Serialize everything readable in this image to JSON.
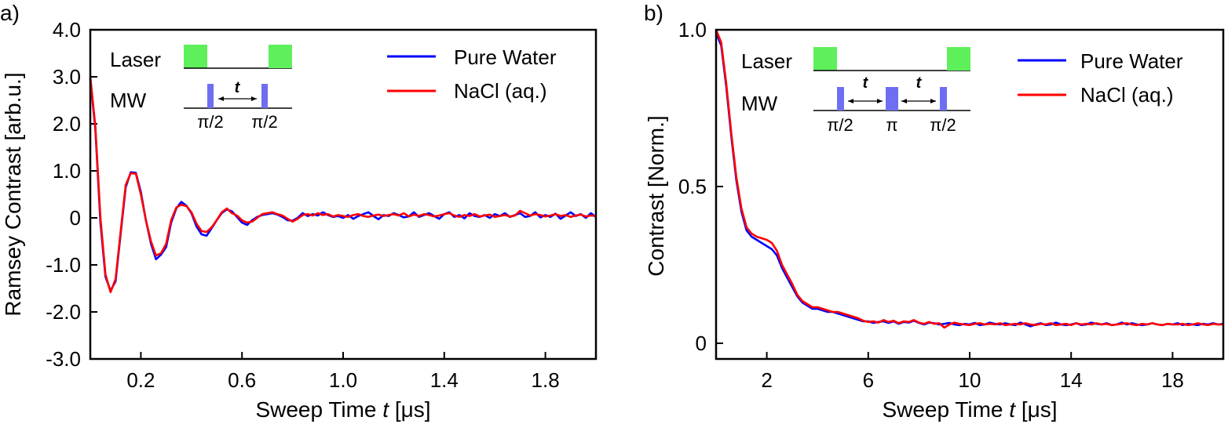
{
  "chart_data": [
    {
      "type": "line",
      "panel_label": "a)",
      "title": "",
      "xlabel_prefix": "Sweep Time ",
      "xlabel_var": "t",
      "xlabel_unit": " [μs]",
      "ylabel": "Ramsey Contrast [arb.u.]",
      "xlim": [
        0,
        2.0
      ],
      "ylim": [
        -3.0,
        4.0
      ],
      "xticks": [
        0.2,
        0.6,
        1.0,
        1.4,
        1.8
      ],
      "xtick_labels": [
        "0.2",
        "0.6",
        "1.0",
        "1.4",
        "1.8"
      ],
      "yticks": [
        4.0,
        3.0,
        2.0,
        1.0,
        0,
        -1.0,
        -2.0,
        -3.0
      ],
      "ytick_labels": [
        "4.0",
        "3.0",
        "2.0",
        "1.0",
        "0",
        "-1.0",
        "-2.0",
        "-3.0"
      ],
      "series": [
        {
          "name": "Pure Water",
          "color": "#0000ff",
          "x": [
            0.0,
            0.02,
            0.04,
            0.06,
            0.08,
            0.1,
            0.12,
            0.14,
            0.16,
            0.18,
            0.2,
            0.22,
            0.24,
            0.26,
            0.28,
            0.3,
            0.32,
            0.34,
            0.36,
            0.38,
            0.4,
            0.42,
            0.44,
            0.46,
            0.48,
            0.5,
            0.52,
            0.54,
            0.56,
            0.58,
            0.6,
            0.62,
            0.64,
            0.66,
            0.68,
            0.7,
            0.72,
            0.74,
            0.76,
            0.78,
            0.8,
            0.82,
            0.84,
            0.86,
            0.88,
            0.9,
            0.92,
            0.94,
            0.96,
            0.98,
            1.0,
            1.02,
            1.04,
            1.06,
            1.08,
            1.1,
            1.12,
            1.14,
            1.16,
            1.18,
            1.2,
            1.22,
            1.24,
            1.26,
            1.28,
            1.3,
            1.32,
            1.34,
            1.36,
            1.38,
            1.4,
            1.42,
            1.44,
            1.46,
            1.48,
            1.5,
            1.52,
            1.54,
            1.56,
            1.58,
            1.6,
            1.62,
            1.64,
            1.66,
            1.68,
            1.7,
            1.72,
            1.74,
            1.76,
            1.78,
            1.8,
            1.82,
            1.84,
            1.86,
            1.88,
            1.9,
            1.92,
            1.94,
            1.96,
            1.98,
            2.0
          ],
          "values": [
            2.95,
            1.9,
            -0.1,
            -1.25,
            -1.55,
            -1.35,
            -0.35,
            0.65,
            0.97,
            0.96,
            0.55,
            -0.05,
            -0.55,
            -0.88,
            -0.78,
            -0.62,
            -0.1,
            0.2,
            0.34,
            0.26,
            0.1,
            -0.18,
            -0.35,
            -0.38,
            -0.22,
            -0.05,
            0.1,
            0.18,
            0.14,
            0.02,
            -0.1,
            -0.15,
            -0.05,
            0.02,
            0.06,
            0.08,
            0.1,
            0.07,
            0.02,
            -0.05,
            -0.06,
            0.0,
            0.1,
            0.04,
            0.08,
            0.05,
            0.12,
            0.06,
            0.02,
            0.04,
            0.0,
            0.06,
            -0.02,
            0.04,
            0.08,
            0.12,
            0.04,
            -0.03,
            0.06,
            0.04,
            0.1,
            0.06,
            0.01,
            0.03,
            0.12,
            0.02,
            0.06,
            0.1,
            0.04,
            -0.02,
            0.08,
            0.12,
            0.02,
            0.06,
            -0.01,
            0.1,
            0.04,
            0.02,
            0.06,
            0.0,
            0.08,
            0.04,
            0.1,
            0.02,
            0.06,
            0.1,
            0.02,
            0.04,
            0.12,
            0.01,
            0.06,
            0.02,
            0.09,
            -0.02,
            0.05,
            0.12,
            0.04,
            0.08,
            0.0,
            0.1,
            0.02
          ]
        },
        {
          "name": "NaCl (aq.)",
          "color": "#ff0000",
          "x": [
            0.0,
            0.02,
            0.04,
            0.06,
            0.08,
            0.1,
            0.12,
            0.14,
            0.16,
            0.18,
            0.2,
            0.22,
            0.24,
            0.26,
            0.28,
            0.3,
            0.32,
            0.34,
            0.36,
            0.38,
            0.4,
            0.42,
            0.44,
            0.46,
            0.48,
            0.5,
            0.52,
            0.54,
            0.56,
            0.58,
            0.6,
            0.62,
            0.64,
            0.66,
            0.68,
            0.7,
            0.72,
            0.74,
            0.76,
            0.78,
            0.8,
            0.82,
            0.84,
            0.86,
            0.88,
            0.9,
            0.92,
            0.94,
            0.96,
            0.98,
            1.0,
            1.02,
            1.04,
            1.06,
            1.08,
            1.1,
            1.12,
            1.14,
            1.16,
            1.18,
            1.2,
            1.22,
            1.24,
            1.26,
            1.28,
            1.3,
            1.32,
            1.34,
            1.36,
            1.38,
            1.4,
            1.42,
            1.44,
            1.46,
            1.48,
            1.5,
            1.52,
            1.54,
            1.56,
            1.58,
            1.6,
            1.62,
            1.64,
            1.66,
            1.68,
            1.7,
            1.72,
            1.74,
            1.76,
            1.78,
            1.8,
            1.82,
            1.84,
            1.86,
            1.88,
            1.9,
            1.92,
            1.94,
            1.96,
            1.98,
            2.0
          ],
          "values": [
            3.0,
            1.95,
            0.0,
            -1.2,
            -1.58,
            -1.3,
            -0.3,
            0.7,
            0.95,
            0.94,
            0.5,
            -0.05,
            -0.5,
            -0.8,
            -0.75,
            -0.55,
            -0.05,
            0.22,
            0.28,
            0.25,
            0.12,
            -0.12,
            -0.28,
            -0.3,
            -0.2,
            -0.05,
            0.12,
            0.2,
            0.1,
            0.05,
            -0.05,
            -0.1,
            -0.08,
            0.0,
            0.08,
            0.1,
            0.12,
            0.08,
            0.05,
            -0.02,
            -0.08,
            -0.02,
            0.06,
            0.08,
            0.05,
            0.1,
            0.06,
            0.08,
            0.03,
            0.06,
            0.04,
            0.02,
            0.06,
            0.08,
            0.04,
            0.02,
            0.05,
            0.07,
            0.04,
            0.06,
            0.08,
            0.05,
            0.1,
            0.03,
            0.07,
            0.04,
            0.08,
            0.06,
            0.03,
            0.05,
            0.08,
            0.1,
            0.05,
            0.02,
            0.06,
            0.04,
            0.08,
            0.03,
            0.05,
            0.07,
            0.02,
            0.04,
            0.06,
            0.03,
            0.05,
            0.15,
            0.1,
            0.05,
            0.08,
            0.06,
            0.03,
            0.05,
            0.08,
            0.04,
            0.06,
            0.02,
            0.05,
            0.07,
            0.03,
            0.05,
            0.04
          ]
        }
      ],
      "inset": {
        "laser_label": "Laser",
        "mw_label": "MW",
        "time_label": "t",
        "pulse_labels": [
          "π/2",
          "π/2"
        ],
        "laser_color": "#5ef05a",
        "pulse_color": "#6e6ef2"
      }
    },
    {
      "type": "line",
      "panel_label": "b)",
      "title": "",
      "xlabel_prefix": "Sweep Time ",
      "xlabel_var": "t",
      "xlabel_unit": " [μs]",
      "ylabel": "Contrast [Norm.]",
      "xlim": [
        0,
        20
      ],
      "ylim": [
        -0.05,
        1.0
      ],
      "xticks": [
        2,
        6,
        10,
        14,
        18
      ],
      "xtick_labels": [
        "2",
        "6",
        "10",
        "14",
        "18"
      ],
      "yticks": [
        1.0,
        0.5,
        0
      ],
      "ytick_labels": [
        "1.0",
        "0.5",
        "0"
      ],
      "series": [
        {
          "name": "Pure Water",
          "color": "#0000ff",
          "x": [
            0.0,
            0.2,
            0.4,
            0.6,
            0.8,
            1.0,
            1.2,
            1.4,
            1.6,
            1.8,
            2.0,
            2.2,
            2.4,
            2.6,
            2.8,
            3.0,
            3.2,
            3.4,
            3.6,
            3.8,
            4.0,
            4.2,
            4.4,
            4.6,
            4.8,
            5.0,
            5.2,
            5.4,
            5.6,
            5.8,
            6.0,
            6.2,
            6.4,
            6.6,
            6.8,
            7.0,
            7.2,
            7.4,
            7.6,
            7.8,
            8.0,
            8.2,
            8.4,
            8.6,
            8.8,
            9.0,
            9.2,
            9.4,
            9.6,
            9.8,
            10.0,
            10.2,
            10.4,
            10.6,
            10.8,
            11.0,
            11.2,
            11.4,
            11.6,
            11.8,
            12.0,
            12.2,
            12.4,
            12.6,
            12.8,
            13.0,
            13.2,
            13.4,
            13.6,
            13.8,
            14.0,
            14.2,
            14.4,
            14.6,
            14.8,
            15.0,
            15.2,
            15.4,
            15.6,
            15.8,
            16.0,
            16.2,
            16.4,
            16.6,
            16.8,
            17.0,
            17.2,
            17.4,
            17.6,
            17.8,
            18.0,
            18.2,
            18.4,
            18.6,
            18.8,
            19.0,
            19.2,
            19.4,
            19.6,
            19.8,
            20.0
          ],
          "values": [
            0.99,
            0.95,
            0.82,
            0.66,
            0.52,
            0.42,
            0.36,
            0.34,
            0.33,
            0.32,
            0.31,
            0.3,
            0.28,
            0.24,
            0.21,
            0.18,
            0.15,
            0.13,
            0.12,
            0.11,
            0.11,
            0.105,
            0.1,
            0.1,
            0.095,
            0.09,
            0.085,
            0.08,
            0.075,
            0.07,
            0.07,
            0.065,
            0.068,
            0.07,
            0.065,
            0.07,
            0.062,
            0.068,
            0.066,
            0.072,
            0.065,
            0.06,
            0.066,
            0.064,
            0.06,
            0.062,
            0.065,
            0.06,
            0.058,
            0.062,
            0.06,
            0.065,
            0.058,
            0.06,
            0.066,
            0.062,
            0.06,
            0.064,
            0.06,
            0.058,
            0.066,
            0.06,
            0.054,
            0.06,
            0.064,
            0.058,
            0.06,
            0.066,
            0.06,
            0.058,
            0.06,
            0.064,
            0.058,
            0.06,
            0.066,
            0.062,
            0.06,
            0.064,
            0.058,
            0.06,
            0.066,
            0.06,
            0.064,
            0.06,
            0.058,
            0.06,
            0.064,
            0.06,
            0.058,
            0.062,
            0.06,
            0.064,
            0.058,
            0.062,
            0.06,
            0.058,
            0.062,
            0.06,
            0.064,
            0.06,
            0.062
          ]
        },
        {
          "name": "NaCl (aq.)",
          "color": "#ff0000",
          "x": [
            0.0,
            0.2,
            0.4,
            0.6,
            0.8,
            1.0,
            1.2,
            1.4,
            1.6,
            1.8,
            2.0,
            2.2,
            2.4,
            2.6,
            2.8,
            3.0,
            3.2,
            3.4,
            3.6,
            3.8,
            4.0,
            4.2,
            4.4,
            4.6,
            4.8,
            5.0,
            5.2,
            5.4,
            5.6,
            5.8,
            6.0,
            6.2,
            6.4,
            6.6,
            6.8,
            7.0,
            7.2,
            7.4,
            7.6,
            7.8,
            8.0,
            8.2,
            8.4,
            8.6,
            8.8,
            9.0,
            9.2,
            9.4,
            9.6,
            9.8,
            10.0,
            10.2,
            10.4,
            10.6,
            10.8,
            11.0,
            11.2,
            11.4,
            11.6,
            11.8,
            12.0,
            12.2,
            12.4,
            12.6,
            12.8,
            13.0,
            13.2,
            13.4,
            13.6,
            13.8,
            14.0,
            14.2,
            14.4,
            14.6,
            14.8,
            15.0,
            15.2,
            15.4,
            15.6,
            15.8,
            16.0,
            16.2,
            16.4,
            16.6,
            16.8,
            17.0,
            17.2,
            17.4,
            17.6,
            17.8,
            18.0,
            18.2,
            18.4,
            18.6,
            18.8,
            19.0,
            19.2,
            19.4,
            19.6,
            19.8,
            20.0
          ],
          "values": [
            1.0,
            0.96,
            0.83,
            0.67,
            0.53,
            0.43,
            0.37,
            0.35,
            0.34,
            0.335,
            0.33,
            0.32,
            0.295,
            0.25,
            0.22,
            0.19,
            0.155,
            0.135,
            0.125,
            0.115,
            0.115,
            0.11,
            0.105,
            0.1,
            0.1,
            0.095,
            0.09,
            0.085,
            0.08,
            0.072,
            0.068,
            0.07,
            0.066,
            0.074,
            0.068,
            0.072,
            0.064,
            0.07,
            0.068,
            0.074,
            0.066,
            0.062,
            0.068,
            0.062,
            0.064,
            0.05,
            0.06,
            0.066,
            0.062,
            0.06,
            0.058,
            0.062,
            0.064,
            0.06,
            0.062,
            0.06,
            0.064,
            0.058,
            0.06,
            0.062,
            0.06,
            0.064,
            0.06,
            0.058,
            0.062,
            0.06,
            0.064,
            0.058,
            0.06,
            0.062,
            0.058,
            0.064,
            0.06,
            0.062,
            0.06,
            0.064,
            0.06,
            0.062,
            0.058,
            0.06,
            0.062,
            0.064,
            0.06,
            0.058,
            0.062,
            0.06,
            0.064,
            0.06,
            0.058,
            0.062,
            0.06,
            0.06,
            0.062,
            0.058,
            0.06,
            0.064,
            0.06,
            0.058,
            0.062,
            0.06,
            0.06
          ]
        }
      ],
      "inset": {
        "laser_label": "Laser",
        "mw_label": "MW",
        "time_label": "t",
        "pulse_labels": [
          "π/2",
          "π",
          "π/2"
        ],
        "laser_color": "#5ef05a",
        "pulse_color": "#6e6ef2"
      }
    }
  ]
}
